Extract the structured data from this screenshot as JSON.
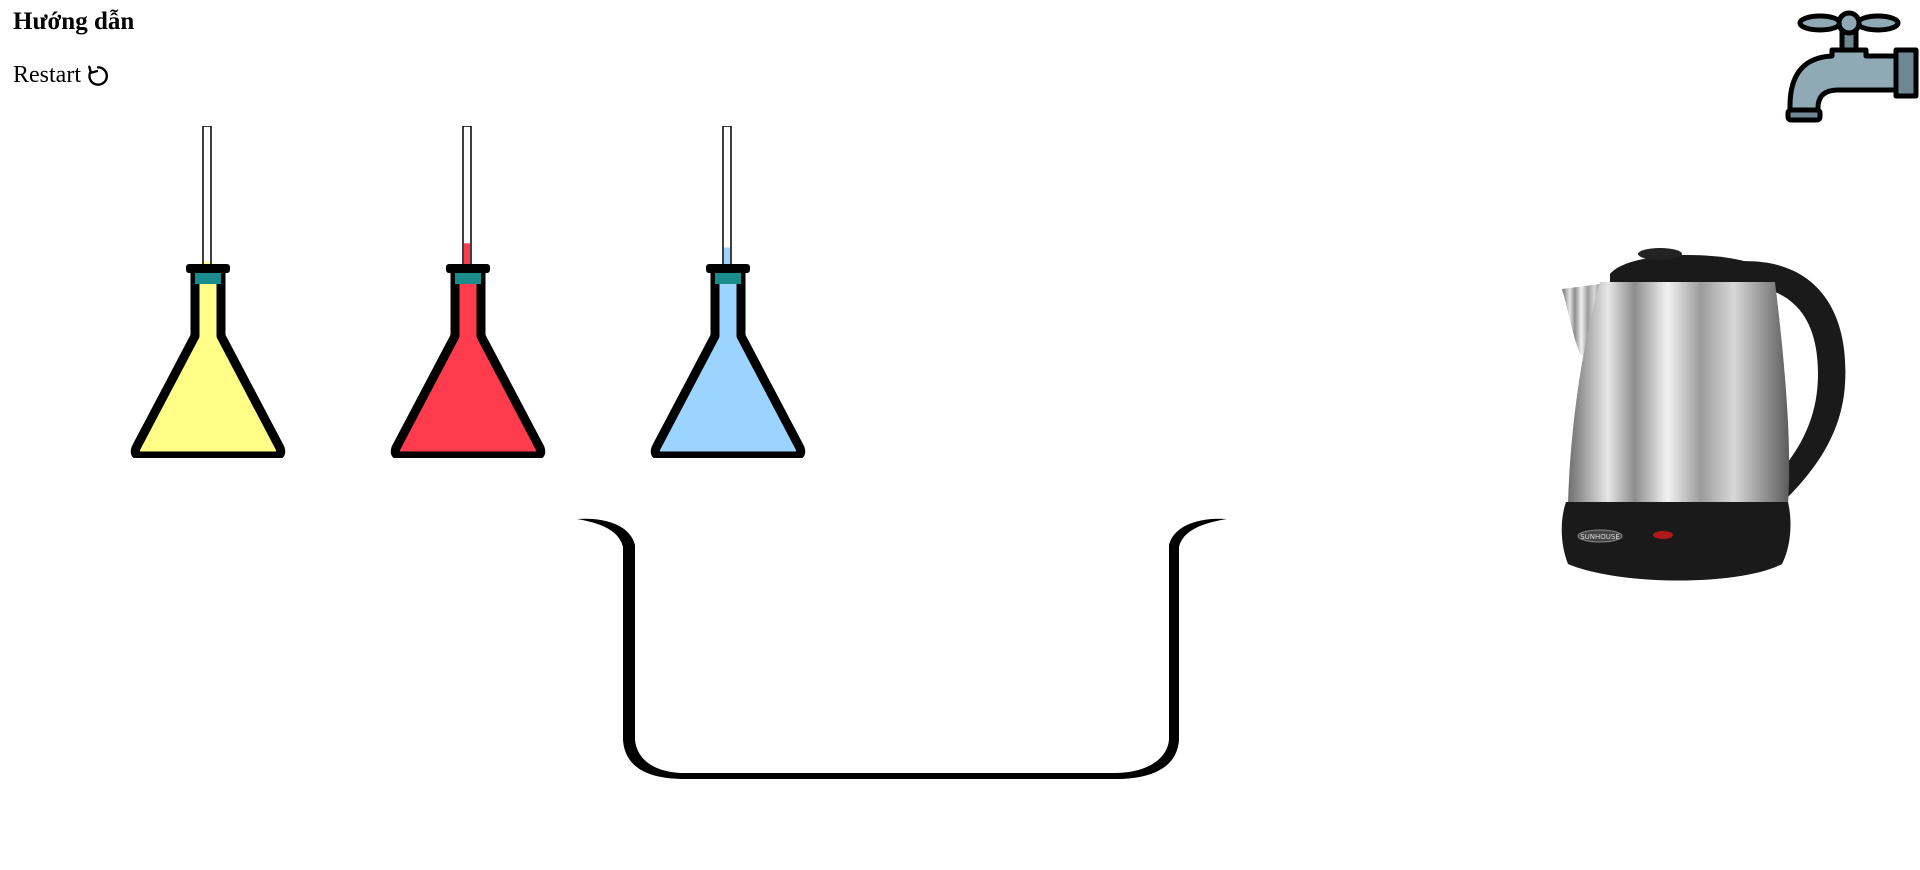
{
  "header": {
    "guide_label": "Hướng dẫn",
    "restart_label": "Restart",
    "restart_icon": "rotate-cw-icon"
  },
  "flasks": [
    {
      "liquid_color": "#ffff88",
      "tube_fill": 0.05
    },
    {
      "liquid_color": "#ff3b4e",
      "tube_fill": 0.18
    },
    {
      "liquid_color": "#9bd5ff",
      "tube_fill": 0.15
    }
  ],
  "colors": {
    "stopper": "#1a8c8c",
    "outline": "#000000",
    "faucet_body": "#8fa9b5",
    "faucet_dark": "#6f8792",
    "kettle_steel": "#a8a8a8",
    "kettle_black": "#1a1a1a"
  },
  "kettle": {
    "brand": "SUNHOUSE"
  }
}
